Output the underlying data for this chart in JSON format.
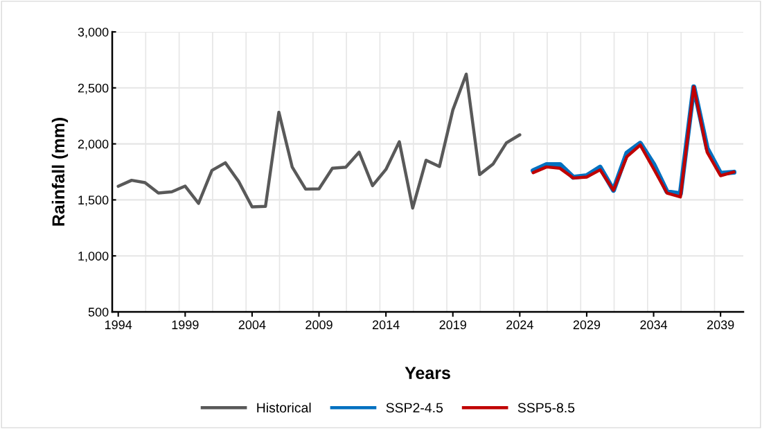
{
  "chart_data": {
    "type": "line",
    "xlabel": "Years",
    "ylabel": "Rainfall (mm)",
    "categories": [
      "1994",
      null,
      null,
      null,
      null,
      "1999",
      null,
      null,
      null,
      null,
      "2004",
      null,
      null,
      null,
      null,
      "2009",
      null,
      null,
      null,
      null,
      "2014",
      null,
      null,
      null,
      null,
      "2019",
      null,
      null,
      null,
      null,
      "2024",
      null,
      null,
      null,
      null,
      "2029",
      null,
      null,
      null,
      null,
      "2034",
      null,
      null,
      null,
      null,
      "2039",
      null
    ],
    "series": [
      {
        "name": "Historical",
        "color": "#595959",
        "values": [
          1621,
          1675,
          1654,
          1561,
          1572,
          1623,
          1469,
          1763,
          1831,
          1664,
          1438,
          1442,
          2283,
          1792,
          1596,
          1598,
          1782,
          1792,
          1926,
          1627,
          1772,
          2019,
          1427,
          1854,
          1798,
          2303,
          2623,
          1726,
          1819,
          2009,
          2081,
          null,
          null,
          null,
          null,
          null,
          null,
          null,
          null,
          null,
          null,
          null,
          null,
          null,
          null,
          null,
          null
        ]
      },
      {
        "name": "SSP2-4.5",
        "color": "#0070c0",
        "values": [
          null,
          null,
          null,
          null,
          null,
          null,
          null,
          null,
          null,
          null,
          null,
          null,
          null,
          null,
          null,
          null,
          null,
          null,
          null,
          null,
          null,
          null,
          null,
          null,
          null,
          null,
          null,
          null,
          null,
          null,
          null,
          1761,
          1815,
          1815,
          1702,
          1716,
          1792,
          1586,
          1918,
          2005,
          1819,
          1572,
          1555,
          2509,
          1959,
          1737,
          1747
        ]
      },
      {
        "name": "SSP5-8.5",
        "color": "#c00000",
        "values": [
          null,
          null,
          null,
          null,
          null,
          null,
          null,
          null,
          null,
          null,
          null,
          null,
          null,
          null,
          null,
          null,
          null,
          null,
          null,
          null,
          null,
          null,
          null,
          null,
          null,
          null,
          null,
          null,
          null,
          null,
          null,
          1743,
          1794,
          1782,
          1695,
          1704,
          1768,
          1586,
          1885,
          1990,
          1778,
          1561,
          1526,
          2509,
          1926,
          1716,
          1749
        ]
      }
    ],
    "ylim": [
      500,
      3000
    ],
    "yticks": [
      {
        "value": 500,
        "label": "500"
      },
      {
        "value": 1000,
        "label": "1,000"
      },
      {
        "value": 1500,
        "label": "1,500"
      },
      {
        "value": 2000,
        "label": "2,000"
      },
      {
        "value": 2500,
        "label": "2,500"
      },
      {
        "value": 3000,
        "label": "3,000"
      }
    ],
    "grid": true,
    "legend": "bottom",
    "marker": "none",
    "line_style": "solid"
  }
}
